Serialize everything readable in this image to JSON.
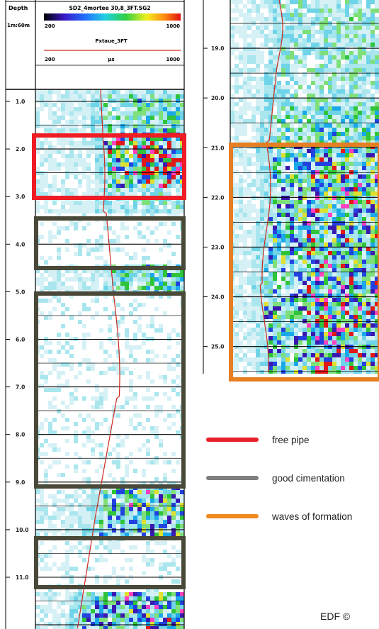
{
  "header": {
    "depth_label": "Depth",
    "scale_label": "1m:60m",
    "track1_name": "SD2_4mortee 30,8_3FT.SG2",
    "track1_min": "200",
    "track1_max": "1000",
    "track2_name": "Pxtaue_3FT",
    "track2_min": "200",
    "track2_unit": "µs",
    "track2_max": "1000"
  },
  "left_depth_ticks": [
    "1.0",
    "2.0",
    "3.0",
    "4.0",
    "5.0",
    "6.0",
    "7.0",
    "8.0",
    "9.0",
    "10.0",
    "11.0"
  ],
  "right_depth_ticks": [
    "19.0",
    "20.0",
    "21.0",
    "22.0",
    "23.0",
    "24.0",
    "25.0"
  ],
  "legend": [
    {
      "label": "free pipe",
      "color": "#e8202a"
    },
    {
      "label": "good cimentation",
      "color": "#7f7f7f"
    },
    {
      "label": "waves of formation",
      "color": "#f08a1c"
    }
  ],
  "colors": {
    "free_pipe_box": "#ee1c24",
    "good_cimentation_box": "#4a4838",
    "waves_of_formation_box": "#e67e22",
    "transit_time_curve": "#cc2a1e"
  },
  "credit": "EDF ©"
}
